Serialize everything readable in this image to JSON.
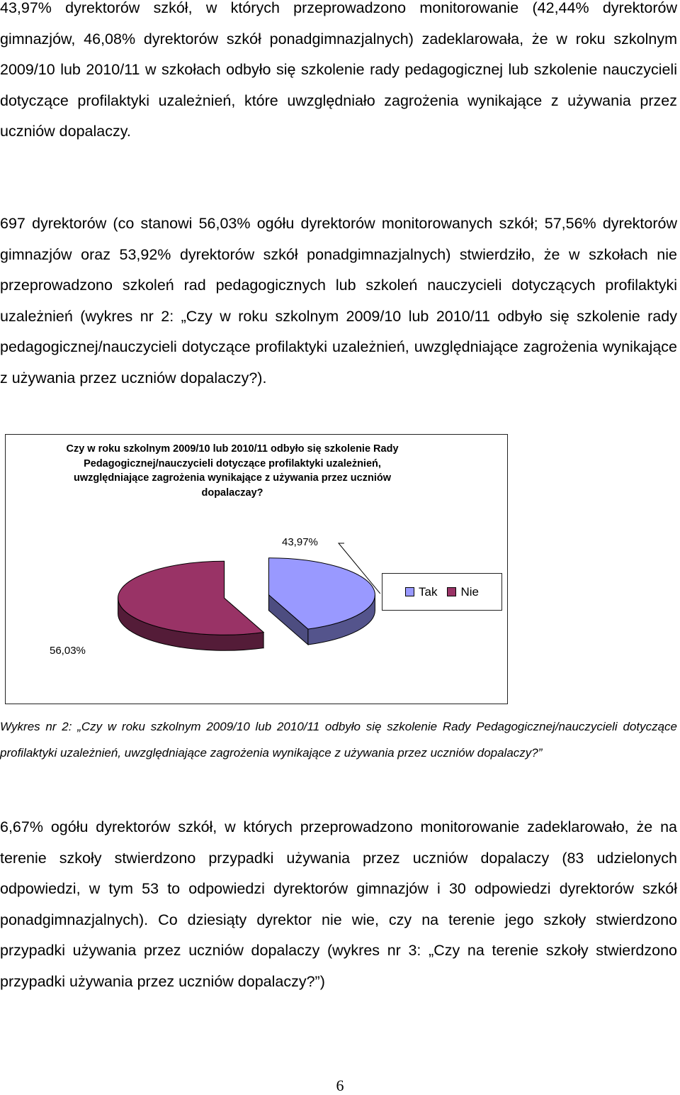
{
  "paragraphs": {
    "p1": "43,97% dyrektorów szkół, w których przeprowadzono monitorowanie (42,44% dyrektorów gimnazjów, 46,08% dyrektorów szkół ponadgimnazjalnych) zadeklarowała, że w roku szkolnym 2009/10 lub 2010/11 w szkołach odbyło się szkolenie rady pedagogicznej lub szkolenie nauczycieli dotyczące profilaktyki uzależnień, które uwzględniało zagrożenia wynikające z używania przez uczniów dopalaczy.",
    "p2": "697 dyrektorów (co stanowi 56,03% ogółu dyrektorów monitorowanych szkół; 57,56% dyrektorów gimnazjów oraz 53,92% dyrektorów szkół ponadgimnazjalnych) stwierdziło, że w szkołach nie przeprowadzono szkoleń rad pedagogicznych lub szkoleń nauczycieli dotyczących profilaktyki uzależnień (wykres nr 2: „Czy w roku szkolnym 2009/10 lub 2010/11 odbyło się szkolenie rady pedagogicznej/nauczycieli dotyczące profilaktyki uzależnień, uwzględniające zagrożenia wynikające z używania przez uczniów dopalaczy?).",
    "caption": "Wykres nr 2: „Czy w roku szkolnym 2009/10 lub 2010/11 odbyło się szkolenie Rady Pedagogicznej/nauczycieli dotyczące profilaktyki uzależnień, uwzględniające zagrożenia wynikające z używania przez uczniów dopalaczy?”",
    "p4": "6,67% ogółu dyrektorów szkół, w których przeprowadzono monitorowanie zadeklarowało, że na terenie szkoły stwierdzono przypadki używania przez uczniów dopalaczy (83 udzielonych odpowiedzi, w tym 53 to odpowiedzi dyrektorów gimnazjów i 30 odpowiedzi dyrektorów szkół ponadgimnazjalnych). Co dziesiąty dyrektor nie wie, czy na terenie jego szkoły stwierdzono przypadki używania przez uczniów dopalaczy (wykres nr 3: „Czy na terenie szkoły stwierdzono przypadki używania przez uczniów dopalaczy?”)"
  },
  "page_number": "6",
  "chart_data": {
    "type": "pie",
    "title": "Czy w roku szkolnym 2009/10 lub 2010/11 odbyło się szkolenie Rady Pedagogicznej/nauczycieli dotyczące profilaktyki uzależnień, uwzględniające zagrożenia wynikające z używania przez uczniów dopalaczay?",
    "categories": [
      "Tak",
      "Nie"
    ],
    "values": [
      43.97,
      56.03
    ],
    "value_labels": [
      "43,97%",
      "56,03%"
    ],
    "colors": [
      "#9999ff",
      "#993366"
    ],
    "legend_position": "right",
    "style": "3d-exploded"
  }
}
